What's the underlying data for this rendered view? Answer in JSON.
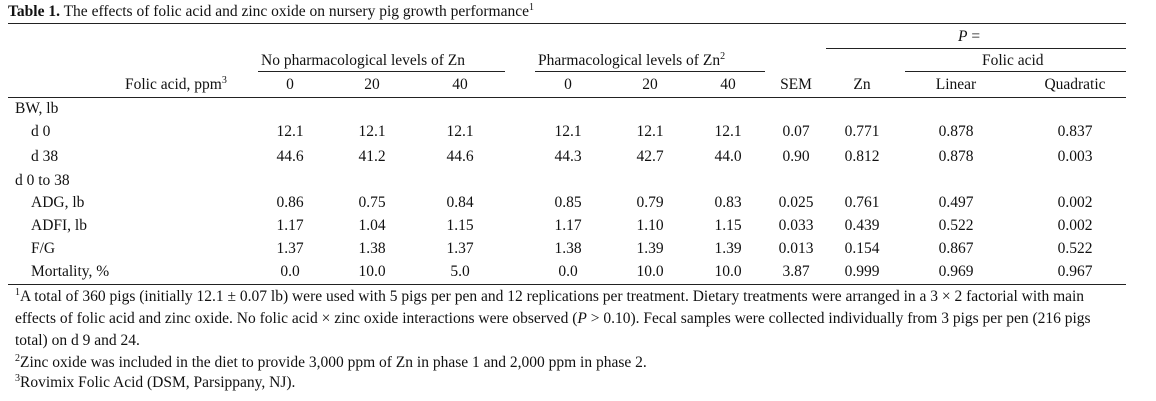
{
  "title": {
    "label": "Table 1.",
    "text": "The effects of folic acid and zinc oxide on nursery pig growth performance",
    "note": "1"
  },
  "header": {
    "p_symbol": "P",
    "p_equals": "=",
    "folic_group": "Folic acid",
    "group1": "No pharmacological levels of Zn",
    "group2": "Pharmacological levels of Zn",
    "group2_note": "2",
    "row_label": "Folic acid, ppm",
    "row_label_note": "3",
    "columns": [
      "0",
      "20",
      "40",
      "0",
      "20",
      "40",
      "SEM",
      "Zn",
      "Linear",
      "Quadratic"
    ]
  },
  "rows": [
    {
      "label": "BW, lb"
    },
    {
      "label": "d 0",
      "values": [
        "12.1",
        "12.1",
        "12.1",
        "12.1",
        "12.1",
        "12.1",
        "0.07",
        "0.771",
        "0.878",
        "0.837"
      ]
    },
    {
      "label": "d 38",
      "values": [
        "44.6",
        "41.2",
        "44.6",
        "44.3",
        "42.7",
        "44.0",
        "0.90",
        "0.812",
        "0.878",
        "0.003"
      ]
    },
    {
      "label": "d 0 to 38"
    },
    {
      "label": "ADG, lb",
      "values": [
        "0.86",
        "0.75",
        "0.84",
        "0.85",
        "0.79",
        "0.83",
        "0.025",
        "0.761",
        "0.497",
        "0.002"
      ]
    },
    {
      "label": "ADFI, lb",
      "values": [
        "1.17",
        "1.04",
        "1.15",
        "1.17",
        "1.10",
        "1.15",
        "0.033",
        "0.439",
        "0.522",
        "0.002"
      ]
    },
    {
      "label": "F/G",
      "values": [
        "1.37",
        "1.38",
        "1.37",
        "1.38",
        "1.39",
        "1.39",
        "0.013",
        "0.154",
        "0.867",
        "0.522"
      ]
    },
    {
      "label": "Mortality, %",
      "values": [
        "0.0",
        "10.0",
        "5.0",
        "0.0",
        "10.0",
        "10.0",
        "3.87",
        "0.999",
        "0.969",
        "0.967"
      ]
    }
  ],
  "footnotes": [
    {
      "mark": "1",
      "text": "A total of 360 pigs (initially 12.1 ± 0.07 lb) were used with 5 pigs per pen and 12 replications per treatment. Dietary treatments were arranged in a 3 × 2 factorial with main effects of folic acid and zinc oxide. No folic acid × zinc oxide interactions were observed (",
      "italic": "P",
      "text_after": " > 0.10). Fecal samples were collected individually from 3 pigs per pen (216 pigs total) on d 9 and 24."
    },
    {
      "mark": "2",
      "text": "Zinc oxide was included in the diet to provide 3,000 ppm of Zn in phase 1 and 2,000 ppm in phase 2."
    },
    {
      "mark": "3",
      "text": "Rovimix Folic Acid (DSM, Parsippany, NJ)."
    }
  ]
}
